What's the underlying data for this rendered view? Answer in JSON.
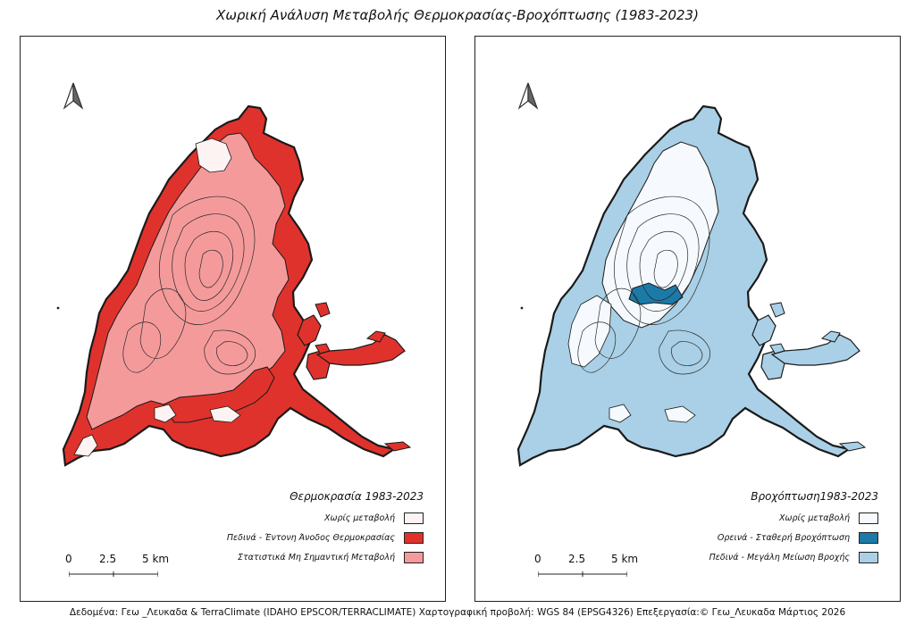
{
  "title": "Χωρική Ανάλυση Μεταβολής Θερμοκρασίας-Βροχόπτωσης  (1983-2023)",
  "panels": {
    "temperature": {
      "legend_title": "Θερμοκρασία 1983-2023",
      "items": [
        {
          "label": "Χωρίς μεταβολή",
          "color": "#fdf3f2"
        },
        {
          "label": "Πεδινά - Έντονη Άνοδος Θερμοκρασίας",
          "color": "#e0322c"
        },
        {
          "label": "Στατιστικά Μη Σημαντική Μεταβολή",
          "color": "#f59a9b"
        }
      ]
    },
    "precipitation": {
      "legend_title": "Βροχόπτωση1983-2023",
      "items": [
        {
          "label": "Χωρίς μεταβολή",
          "color": "#f6fafe"
        },
        {
          "label": "Ορεινά - Σταθερή Βροχόπτωση",
          "color": "#1b7aa8"
        },
        {
          "label": "Πεδινά - Μεγάλη Μείωση Βροχής",
          "color": "#a9d0e6"
        }
      ]
    }
  },
  "scale": {
    "t0": "0",
    "t1": "2.5",
    "t2": "5 km"
  },
  "north_icon": "north-arrow-icon",
  "footer": "Δεδομένα: Γεω _Λευκαδα & TerraClimate (IDAHO EPSCOR/TERRACLIMATE) Χαρτογραφική προβολή: WGS 84 (EPSG4326) Επεξεργασία:© Γεω_Λευκαδα  Μάρτιος 2026"
}
